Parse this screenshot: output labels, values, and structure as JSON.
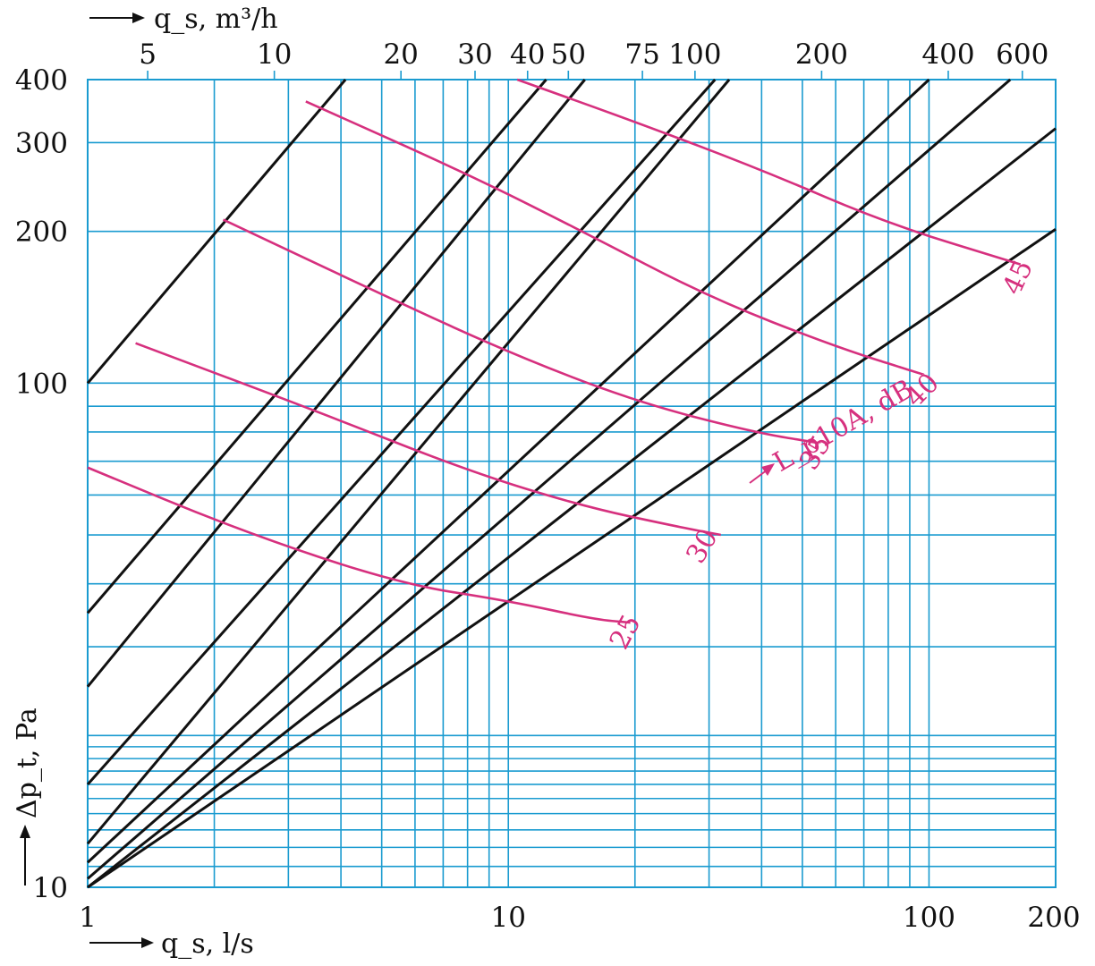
{
  "chart_data": {
    "type": "line",
    "xlabel": "q_s, l/s",
    "x2label": "q_s, m³/h",
    "ylabel": "Δp_t, Pa",
    "curve_label": "L_p10A, dB",
    "xlim": [
      1,
      200
    ],
    "ylim": [
      10,
      400
    ],
    "xscale": "log",
    "yscale": "log",
    "grid": true,
    "colors": {
      "grid": "#1a9bd0",
      "black": "#111111",
      "magenta": "#d6307e",
      "background": "#ffffff"
    },
    "x_ticks": [
      {
        "value": 1,
        "label": "1"
      },
      {
        "value": 10,
        "label": "10"
      },
      {
        "value": 100,
        "label": "100"
      },
      {
        "value": 200,
        "label": "200"
      }
    ],
    "x_gridlines": [
      1,
      2,
      3,
      4,
      5,
      6,
      7,
      8,
      9,
      10,
      20,
      30,
      40,
      50,
      60,
      70,
      80,
      90,
      100,
      200
    ],
    "x2_ticks": [
      {
        "value": 5,
        "label": "5"
      },
      {
        "value": 10,
        "label": "10"
      },
      {
        "value": 20,
        "label": "20"
      },
      {
        "value": 30,
        "label": "30"
      },
      {
        "value": 40,
        "label": "40"
      },
      {
        "value": 50,
        "label": "50"
      },
      {
        "value": 75,
        "label": "75"
      },
      {
        "value": 100,
        "label": "100"
      },
      {
        "value": 200,
        "label": "200"
      },
      {
        "value": 400,
        "label": "400"
      },
      {
        "value": 600,
        "label": "600"
      }
    ],
    "y_ticks": [
      {
        "value": 10,
        "label": "10"
      },
      {
        "value": 100,
        "label": "100"
      },
      {
        "value": 200,
        "label": "200"
      },
      {
        "value": 300,
        "label": "300"
      },
      {
        "value": 400,
        "label": "400"
      }
    ],
    "y_gridlines": [
      10,
      11,
      12,
      13,
      14,
      15,
      16,
      17,
      18,
      19,
      20,
      30,
      40,
      50,
      60,
      70,
      80,
      90,
      100,
      200,
      300,
      400
    ],
    "black_lines": [
      [
        [
          1,
          100
        ],
        [
          4.1,
          400
        ]
      ],
      [
        [
          1,
          35
        ],
        [
          12.3,
          400
        ]
      ],
      [
        [
          1,
          25
        ],
        [
          15.2,
          400
        ]
      ],
      [
        [
          1,
          16
        ],
        [
          31,
          400
        ]
      ],
      [
        [
          1,
          12.2
        ],
        [
          33.5,
          400
        ]
      ],
      [
        [
          1,
          11.2
        ],
        [
          100,
          400
        ]
      ],
      [
        [
          1,
          10.4
        ],
        [
          156,
          400
        ]
      ],
      [
        [
          1,
          10
        ],
        [
          200,
          320
        ]
      ],
      [
        [
          1,
          10
        ],
        [
          200,
          202
        ]
      ]
    ],
    "pink_curves": [
      {
        "label": "25",
        "points": [
          [
            1,
            68
          ],
          [
            2.3,
            51
          ],
          [
            5.5,
            40
          ],
          [
            10,
            37
          ],
          [
            16,
            34
          ],
          [
            19.5,
            33.5
          ]
        ]
      },
      {
        "label": "30",
        "points": [
          [
            1.3,
            120
          ],
          [
            3.5,
            88
          ],
          [
            8,
            67
          ],
          [
            15,
            57
          ],
          [
            25,
            52
          ],
          [
            32,
            50
          ]
        ]
      },
      {
        "label": "35",
        "points": [
          [
            2.1,
            211
          ],
          [
            5,
            150
          ],
          [
            10,
            115
          ],
          [
            20,
            92
          ],
          [
            38,
            80
          ],
          [
            55,
            76
          ]
        ]
      },
      {
        "label": "40",
        "points": [
          [
            3.3,
            362
          ],
          [
            8,
            260
          ],
          [
            15,
            200
          ],
          [
            30,
            148
          ],
          [
            60,
            118
          ],
          [
            97,
            104
          ]
        ]
      },
      {
        "label": "45",
        "points": [
          [
            10.5,
            400
          ],
          [
            20,
            330
          ],
          [
            40,
            265
          ],
          [
            80,
            207
          ],
          [
            165,
            172
          ]
        ]
      }
    ]
  }
}
